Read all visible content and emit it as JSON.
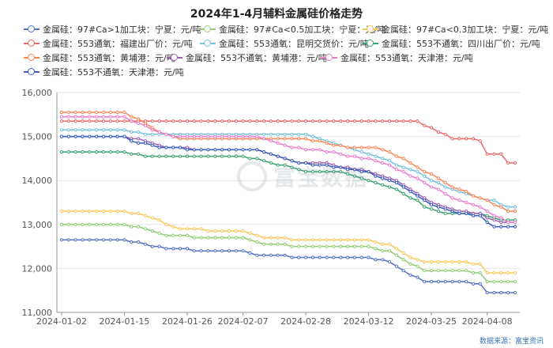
{
  "title": "2024年1-4月辅料金属硅价格走势",
  "source": "数据来源：富宝资讯",
  "watermark": "富宝数据",
  "chart_data": {
    "type": "line",
    "title": "2024年1-4月辅料金属硅价格走势",
    "xlabel": "",
    "ylabel": "",
    "ylim": [
      11000,
      16000
    ],
    "yticks": [
      "11,000",
      "12,000",
      "13,000",
      "14,000",
      "15,000",
      "16,000"
    ],
    "xtick_labels": [
      "2024-01-02",
      "2024-01-15",
      "2024-01-26",
      "2024-02-07",
      "2024-02-28",
      "2024-03-12",
      "2024-03-25",
      "2024-04-08"
    ],
    "grid": true,
    "legend_position": "top",
    "dates": [
      "2024-01-02",
      "2024-01-03",
      "2024-01-04",
      "2024-01-05",
      "2024-01-08",
      "2024-01-09",
      "2024-01-10",
      "2024-01-11",
      "2024-01-12",
      "2024-01-15",
      "2024-01-16",
      "2024-01-17",
      "2024-01-18",
      "2024-01-19",
      "2024-01-22",
      "2024-01-23",
      "2024-01-24",
      "2024-01-25",
      "2024-01-26",
      "2024-01-29",
      "2024-01-30",
      "2024-01-31",
      "2024-02-01",
      "2024-02-02",
      "2024-02-05",
      "2024-02-06",
      "2024-02-07",
      "2024-02-08",
      "2024-02-19",
      "2024-02-20",
      "2024-02-21",
      "2024-02-22",
      "2024-02-23",
      "2024-02-26",
      "2024-02-27",
      "2024-02-28",
      "2024-02-29",
      "2024-03-01",
      "2024-03-04",
      "2024-03-05",
      "2024-03-06",
      "2024-03-07",
      "2024-03-08",
      "2024-03-11",
      "2024-03-12",
      "2024-03-13",
      "2024-03-14",
      "2024-03-15",
      "2024-03-18",
      "2024-03-19",
      "2024-03-20",
      "2024-03-21",
      "2024-03-22",
      "2024-03-25",
      "2024-03-26",
      "2024-03-27",
      "2024-03-28",
      "2024-03-29",
      "2024-04-01",
      "2024-04-02",
      "2024-04-03",
      "2024-04-08",
      "2024-04-09",
      "2024-04-10",
      "2024-04-11",
      "2024-04-12"
    ],
    "series": [
      {
        "name": "金属硅：97#Ca>1加工块：宁夏：元/吨",
        "color": "#5470c6",
        "values": [
          12650,
          12650,
          12650,
          12650,
          12650,
          12650,
          12650,
          12650,
          12650,
          12650,
          12600,
          12600,
          12550,
          12500,
          12500,
          12450,
          12450,
          12450,
          12450,
          12400,
          12400,
          12400,
          12400,
          12400,
          12400,
          12400,
          12400,
          12350,
          12300,
          12300,
          12300,
          12300,
          12300,
          12250,
          12250,
          12250,
          12250,
          12250,
          12250,
          12250,
          12250,
          12250,
          12250,
          12250,
          12250,
          12200,
          12200,
          12150,
          12050,
          11950,
          11850,
          11800,
          11700,
          11700,
          11700,
          11700,
          11700,
          11700,
          11700,
          11650,
          11650,
          11450,
          11450,
          11450,
          11450,
          11450
        ]
      },
      {
        "name": "金属硅：97#Ca<0.5加工块：宁夏：元/吨",
        "color": "#91cc75",
        "values": [
          13000,
          13000,
          13000,
          13000,
          13000,
          13000,
          13000,
          13000,
          13000,
          13000,
          12950,
          12950,
          12900,
          12850,
          12800,
          12750,
          12750,
          12750,
          12750,
          12700,
          12700,
          12700,
          12700,
          12700,
          12700,
          12700,
          12700,
          12650,
          12600,
          12550,
          12550,
          12550,
          12550,
          12500,
          12500,
          12500,
          12500,
          12500,
          12500,
          12500,
          12500,
          12500,
          12500,
          12500,
          12500,
          12450,
          12400,
          12400,
          12300,
          12200,
          12100,
          12050,
          11950,
          11950,
          11950,
          11950,
          11950,
          11950,
          11950,
          11900,
          11900,
          11700,
          11700,
          11700,
          11700,
          11700
        ]
      },
      {
        "name": "金属硅：97#Ca<0.3加工块：宁夏：元/吨",
        "color": "#fac858",
        "values": [
          13300,
          13300,
          13300,
          13300,
          13300,
          13300,
          13300,
          13300,
          13300,
          13300,
          13250,
          13250,
          13200,
          13150,
          13100,
          13000,
          12950,
          12900,
          12900,
          12900,
          12900,
          12850,
          12850,
          12850,
          12850,
          12850,
          12850,
          12800,
          12750,
          12700,
          12700,
          12700,
          12700,
          12650,
          12650,
          12650,
          12650,
          12650,
          12650,
          12650,
          12650,
          12650,
          12650,
          12650,
          12650,
          12600,
          12550,
          12550,
          12450,
          12350,
          12250,
          12200,
          12150,
          12150,
          12150,
          12150,
          12150,
          12150,
          12150,
          12100,
          12100,
          11900,
          11900,
          11900,
          11900,
          11900
        ]
      },
      {
        "name": "金属硅：553通氧：福建出厂价：元/吨",
        "color": "#ee6666",
        "values": [
          15350,
          15350,
          15350,
          15350,
          15350,
          15350,
          15350,
          15350,
          15350,
          15350,
          15350,
          15350,
          15350,
          15350,
          15350,
          15350,
          15350,
          15350,
          15350,
          15350,
          15350,
          15350,
          15350,
          15350,
          15350,
          15350,
          15350,
          15350,
          15350,
          15350,
          15350,
          15350,
          15350,
          15350,
          15350,
          15350,
          15350,
          15350,
          15350,
          15350,
          15350,
          15350,
          15350,
          15350,
          15350,
          15350,
          15350,
          15350,
          15350,
          15350,
          15350,
          15350,
          15250,
          15200,
          15100,
          15050,
          14950,
          14950,
          14950,
          14950,
          14900,
          14600,
          14600,
          14600,
          14400,
          14400
        ]
      },
      {
        "name": "金属硅：553通氧：昆明交货价：元/吨",
        "color": "#73c0de",
        "values": [
          15150,
          15150,
          15150,
          15150,
          15150,
          15150,
          15150,
          15150,
          15150,
          15150,
          15100,
          15100,
          15050,
          15050,
          15050,
          15050,
          15050,
          15050,
          15050,
          15050,
          15050,
          15050,
          15050,
          15050,
          15050,
          15050,
          15050,
          15050,
          15050,
          15050,
          15050,
          15050,
          15050,
          15050,
          15050,
          15050,
          15000,
          14950,
          14900,
          14850,
          14800,
          14750,
          14700,
          14650,
          14600,
          14550,
          14500,
          14450,
          14350,
          14300,
          14250,
          14200,
          14100,
          14000,
          13950,
          13850,
          13800,
          13750,
          13700,
          13650,
          13600,
          13550,
          13550,
          13450,
          13400,
          13400
        ]
      },
      {
        "name": "金属硅：553不通氧：四川出厂价：元/吨",
        "color": "#3ba272",
        "values": [
          14650,
          14650,
          14650,
          14650,
          14650,
          14650,
          14650,
          14650,
          14650,
          14650,
          14600,
          14600,
          14550,
          14550,
          14550,
          14550,
          14550,
          14550,
          14550,
          14550,
          14550,
          14550,
          14550,
          14550,
          14550,
          14550,
          14550,
          14500,
          14500,
          14450,
          14400,
          14350,
          14350,
          14300,
          14250,
          14200,
          14200,
          14200,
          14200,
          14200,
          14200,
          14150,
          14100,
          14050,
          14000,
          13950,
          13900,
          13850,
          13800,
          13700,
          13600,
          13550,
          13400,
          13350,
          13300,
          13250,
          13250,
          13250,
          13250,
          13250,
          13250,
          13200,
          13150,
          13100,
          13100,
          13100
        ]
      },
      {
        "name": "金属硅：553通氧：黄埔港：元/吨",
        "color": "#fc8452",
        "values": [
          15550,
          15550,
          15550,
          15550,
          15550,
          15550,
          15550,
          15550,
          15550,
          15550,
          15450,
          15400,
          15300,
          15200,
          15100,
          15050,
          15000,
          14950,
          14950,
          14950,
          14950,
          14950,
          14950,
          14950,
          14950,
          14950,
          14950,
          14950,
          14950,
          14950,
          14950,
          14950,
          14950,
          14950,
          14950,
          14950,
          14900,
          14900,
          14850,
          14800,
          14800,
          14750,
          14750,
          14750,
          14750,
          14750,
          14700,
          14650,
          14550,
          14500,
          14400,
          14300,
          14200,
          14150,
          14050,
          13950,
          13850,
          13800,
          13750,
          13650,
          13600,
          13550,
          13450,
          13400,
          13300,
          13300
        ]
      },
      {
        "name": "金属硅：553不通氧：黄埔港：元/吨",
        "color": "#9a60b4",
        "values": [
          15000,
          15000,
          15000,
          15000,
          15000,
          15000,
          15000,
          15000,
          15000,
          15000,
          14950,
          14950,
          14900,
          14850,
          14800,
          14750,
          14750,
          14750,
          14750,
          14700,
          14700,
          14700,
          14700,
          14700,
          14700,
          14700,
          14700,
          14700,
          14700,
          14650,
          14600,
          14550,
          14500,
          14450,
          14400,
          14400,
          14400,
          14400,
          14400,
          14350,
          14300,
          14300,
          14250,
          14250,
          14200,
          14150,
          14100,
          14050,
          14000,
          13900,
          13800,
          13700,
          13600,
          13500,
          13450,
          13400,
          13350,
          13300,
          13300,
          13250,
          13250,
          13150,
          13100,
          13050,
          13050,
          13050
        ]
      },
      {
        "name": "金属硅：553通氧：天津港：元/吨",
        "color": "#ea7ccc",
        "values": [
          15450,
          15450,
          15450,
          15450,
          15450,
          15450,
          15450,
          15450,
          15450,
          15450,
          15350,
          15300,
          15250,
          15150,
          15100,
          15050,
          15000,
          15000,
          15000,
          15000,
          15000,
          15000,
          15000,
          15000,
          15000,
          15000,
          15000,
          15000,
          15000,
          14950,
          14900,
          14850,
          14800,
          14750,
          14750,
          14700,
          14700,
          14700,
          14650,
          14650,
          14600,
          14550,
          14550,
          14500,
          14500,
          14450,
          14400,
          14350,
          14250,
          14200,
          14100,
          14050,
          13950,
          13850,
          13800,
          13700,
          13600,
          13550,
          13500,
          13450,
          13400,
          13300,
          13200,
          13150,
          13050,
          13050
        ]
      },
      {
        "name": "金属硅：553不通氧：天津港：元/吨",
        "color": "#3a5bbf",
        "values": [
          15000,
          15000,
          15000,
          15000,
          15000,
          15000,
          15000,
          15000,
          15000,
          15000,
          14900,
          14850,
          14850,
          14800,
          14750,
          14750,
          14750,
          14750,
          14700,
          14700,
          14700,
          14700,
          14700,
          14700,
          14700,
          14700,
          14700,
          14700,
          14700,
          14650,
          14600,
          14550,
          14500,
          14450,
          14400,
          14400,
          14350,
          14350,
          14350,
          14300,
          14300,
          14250,
          14250,
          14200,
          14200,
          14100,
          14050,
          14000,
          13950,
          13850,
          13750,
          13650,
          13550,
          13450,
          13400,
          13350,
          13300,
          13250,
          13250,
          13200,
          13200,
          13050,
          12950,
          12950,
          12950,
          12950
        ]
      }
    ]
  }
}
